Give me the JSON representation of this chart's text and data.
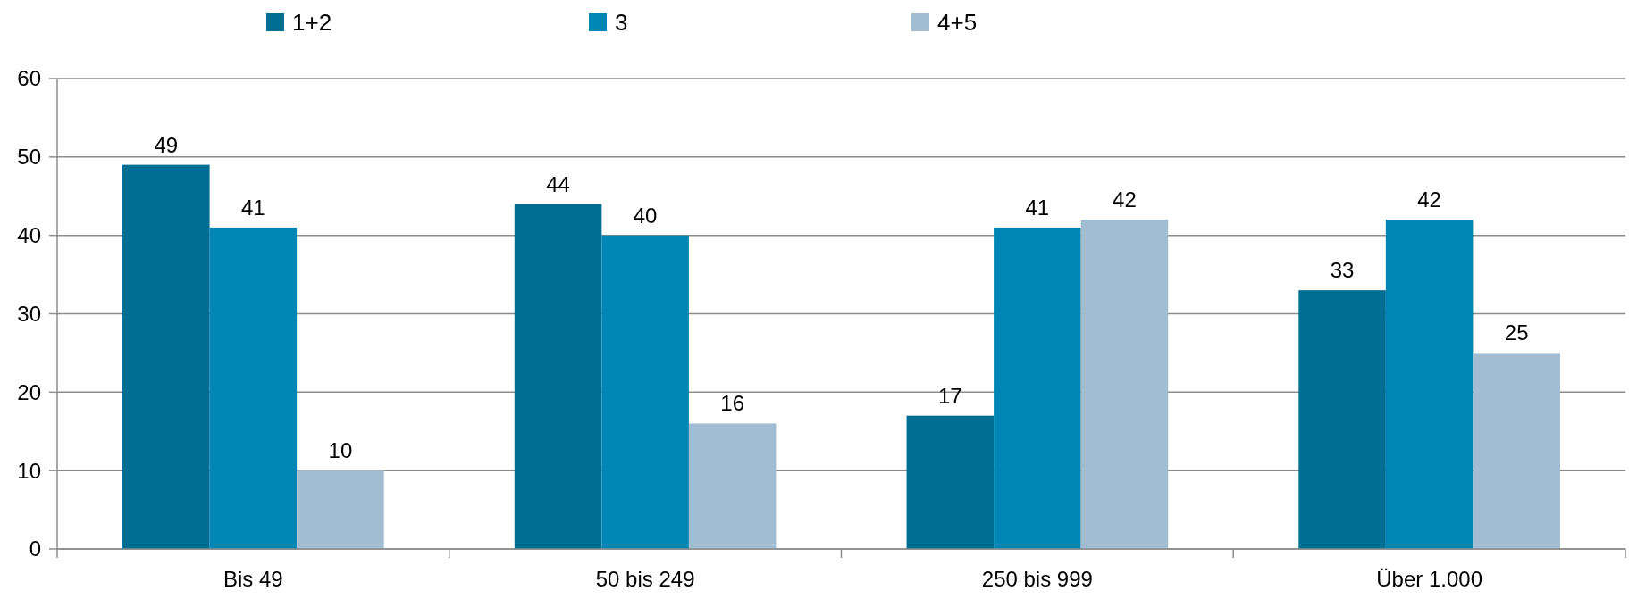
{
  "chart_data": {
    "type": "bar",
    "categories": [
      "Bis 49",
      "50 bis 249",
      "250 bis 999",
      "Über 1.000"
    ],
    "series": [
      {
        "name": "1+2",
        "color": "#006d93",
        "values": [
          49,
          44,
          17,
          33
        ]
      },
      {
        "name": "3",
        "color": "#0086b4",
        "values": [
          41,
          40,
          41,
          42
        ]
      },
      {
        "name": "4+5",
        "color": "#a2bcd2",
        "values": [
          10,
          16,
          42,
          25
        ]
      }
    ],
    "ylim": [
      0,
      60
    ],
    "yticks": [
      0,
      10,
      20,
      30,
      40,
      50,
      60
    ],
    "grid": "y",
    "legend": "top",
    "data_labels": true
  }
}
